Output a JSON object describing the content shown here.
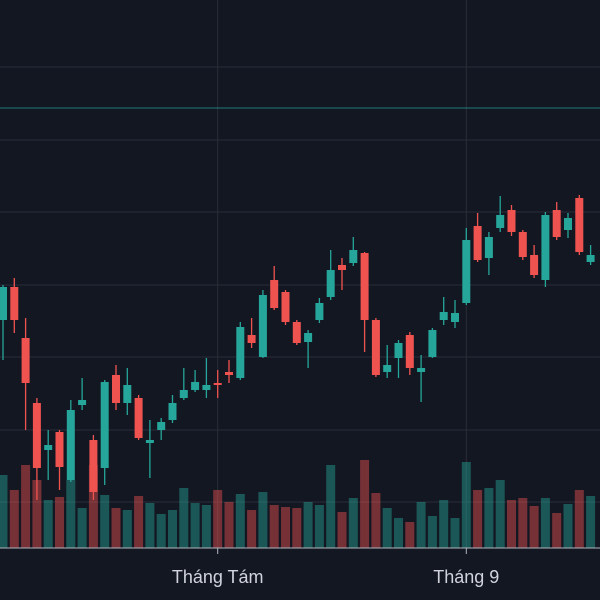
{
  "chart_data": {
    "type": "candlestick",
    "categories": [
      null,
      null,
      null,
      null,
      null,
      null,
      null,
      null,
      null,
      null,
      null,
      null,
      null,
      null,
      null,
      null,
      null,
      null,
      null,
      "Tháng Tám",
      null,
      null,
      null,
      null,
      null,
      null,
      null,
      null,
      null,
      null,
      null,
      null,
      null,
      null,
      null,
      null,
      null,
      null,
      null,
      null,
      null,
      "Tháng 9",
      null,
      null,
      null,
      null,
      null,
      null,
      null,
      null,
      null,
      null,
      null
    ],
    "open": [
      280,
      313,
      262,
      197,
      150,
      168,
      120,
      195,
      160,
      132,
      225,
      197,
      202,
      157,
      170,
      180,
      202,
      210,
      210,
      217,
      228,
      222,
      265,
      243,
      320,
      308,
      278,
      258,
      280,
      303,
      335,
      337,
      347,
      280,
      228,
      242,
      265,
      228,
      243,
      280,
      278,
      297,
      374,
      342,
      372,
      390,
      368,
      345,
      320,
      390,
      370,
      402,
      338
    ],
    "high": [
      315,
      322,
      282,
      202,
      170,
      170,
      200,
      222,
      165,
      220,
      235,
      232,
      205,
      180,
      182,
      205,
      232,
      230,
      242,
      230,
      240,
      278,
      282,
      310,
      334,
      310,
      280,
      270,
      302,
      350,
      342,
      363,
      348,
      282,
      255,
      260,
      268,
      245,
      272,
      303,
      300,
      372,
      387,
      368,
      404,
      395,
      370,
      355,
      388,
      398,
      387,
      405,
      355
    ],
    "low": [
      240,
      267,
      170,
      100,
      120,
      110,
      118,
      190,
      100,
      115,
      190,
      185,
      160,
      122,
      160,
      177,
      200,
      208,
      202,
      202,
      217,
      220,
      252,
      242,
      290,
      275,
      255,
      232,
      277,
      300,
      310,
      334,
      248,
      223,
      222,
      222,
      225,
      198,
      242,
      275,
      272,
      295,
      338,
      325,
      368,
      364,
      340,
      322,
      313,
      360,
      362,
      345,
      335
    ],
    "close": [
      313,
      280,
      217,
      132,
      155,
      133,
      190,
      200,
      108,
      218,
      197,
      215,
      162,
      160,
      178,
      197,
      210,
      218,
      215,
      215,
      225,
      273,
      257,
      305,
      292,
      278,
      257,
      267,
      297,
      330,
      330,
      350,
      280,
      225,
      235,
      257,
      232,
      232,
      270,
      288,
      287,
      360,
      340,
      363,
      385,
      368,
      343,
      325,
      385,
      363,
      382,
      348,
      345
    ],
    "volume": [
      73,
      58,
      83,
      68,
      48,
      51,
      68,
      40,
      83,
      53,
      40,
      38,
      52,
      45,
      34,
      38,
      60,
      45,
      43,
      58,
      46,
      54,
      38,
      56,
      43,
      41,
      40,
      46,
      43,
      83,
      36,
      50,
      88,
      55,
      40,
      30,
      26,
      46,
      32,
      48,
      30,
      86,
      58,
      60,
      68,
      48,
      50,
      42,
      50,
      35,
      44,
      58,
      52
    ],
    "up_color": "#26a69a",
    "down_color": "#ef5350",
    "ylim": [
      52,
      600
    ],
    "yticks": [
      98,
      170,
      243,
      315,
      388,
      460,
      533
    ],
    "grid": true,
    "price_line": 492,
    "price_line_color": "#26a69a"
  }
}
